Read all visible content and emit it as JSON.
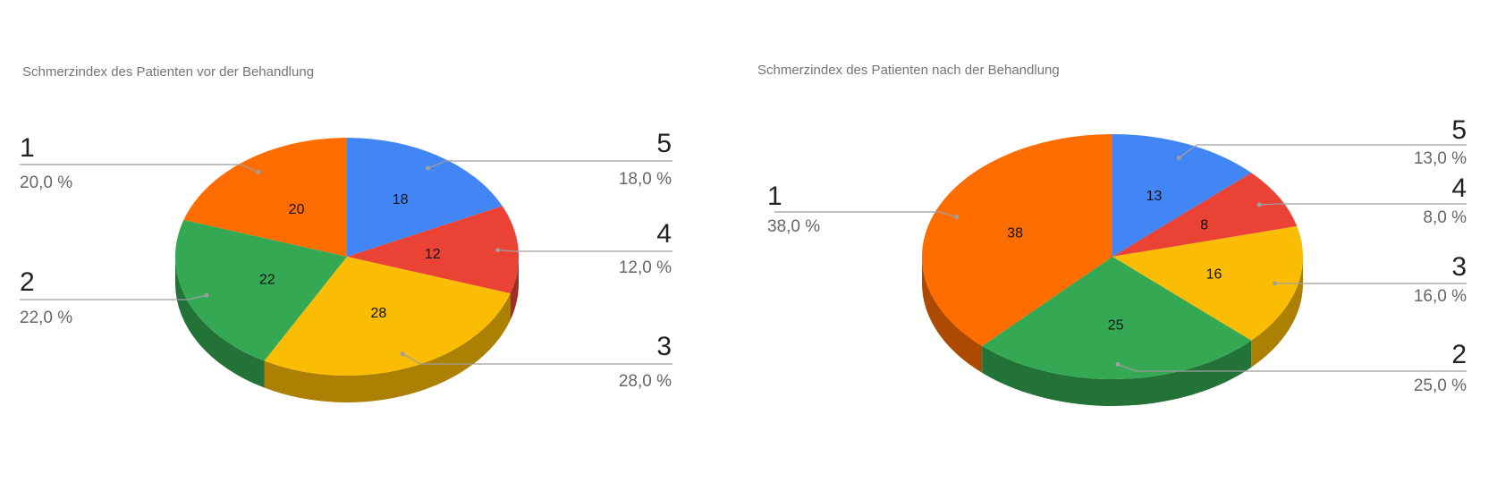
{
  "chart_data": [
    {
      "type": "pie",
      "title": "Schmerzindex des Patienten vor der Behandlung",
      "style": "3d",
      "slices": [
        {
          "label": "5",
          "value": 18,
          "percent": "18,0 %",
          "color": "#4285f4"
        },
        {
          "label": "4",
          "value": 12,
          "percent": "12,0 %",
          "color": "#ea4335"
        },
        {
          "label": "3",
          "value": 28,
          "percent": "28,0 %",
          "color": "#fbbc04"
        },
        {
          "label": "2",
          "value": 22,
          "percent": "22,0 %",
          "color": "#34a853"
        },
        {
          "label": "1",
          "value": 20,
          "percent": "20,0 %",
          "color": "#ff6d01"
        }
      ]
    },
    {
      "type": "pie",
      "title": "Schmerzindex des Patienten nach der Behandlung",
      "style": "3d",
      "slices": [
        {
          "label": "5",
          "value": 13,
          "percent": "13,0 %",
          "color": "#4285f4"
        },
        {
          "label": "4",
          "value": 8,
          "percent": "8,0 %",
          "color": "#ea4335"
        },
        {
          "label": "3",
          "value": 16,
          "percent": "16,0 %",
          "color": "#fbbc04"
        },
        {
          "label": "2",
          "value": 25,
          "percent": "25,0 %",
          "color": "#34a853"
        },
        {
          "label": "1",
          "value": 38,
          "percent": "38,0 %",
          "color": "#ff6d01"
        }
      ]
    }
  ]
}
